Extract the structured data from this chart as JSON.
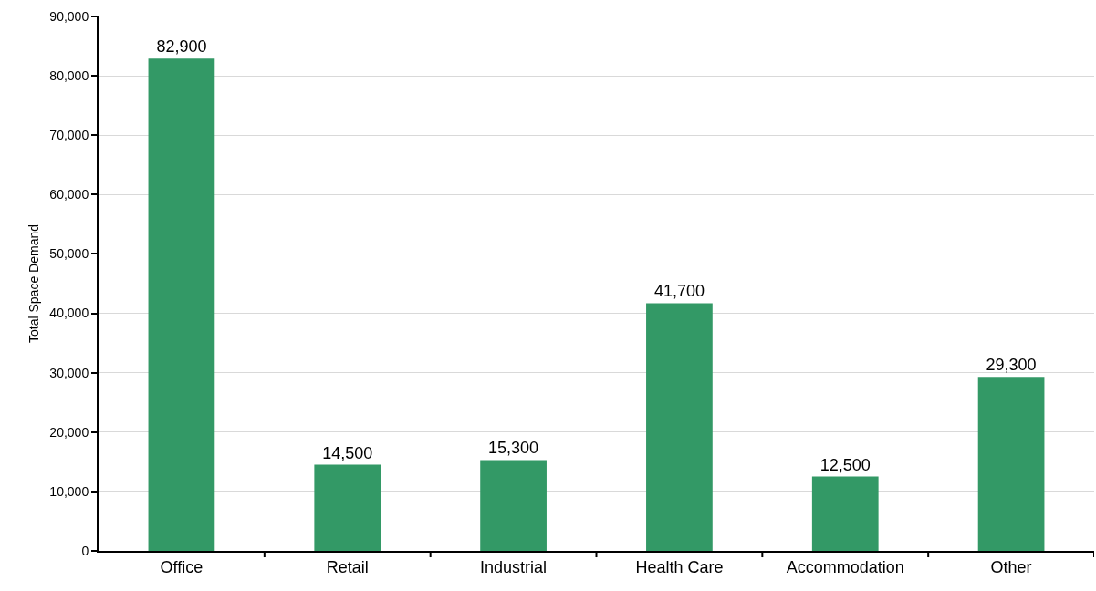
{
  "chart_data": {
    "type": "bar",
    "categories": [
      "Office",
      "Retail",
      "Industrial",
      "Health Care",
      "Accommodation",
      "Other"
    ],
    "values": [
      82900,
      14500,
      15300,
      41700,
      12500,
      29300
    ],
    "color": "#339966",
    "ylabel": "Total Space Demand",
    "ylim": [
      0,
      90000
    ],
    "yticks": [
      {
        "value": 0,
        "label": "0"
      },
      {
        "value": 10000,
        "label": "10,000"
      },
      {
        "value": 20000,
        "label": "20,000"
      },
      {
        "value": 30000,
        "label": "30,000"
      },
      {
        "value": 40000,
        "label": "40,000"
      },
      {
        "value": 50000,
        "label": "50,000"
      },
      {
        "value": 60000,
        "label": "60,000"
      },
      {
        "value": 70000,
        "label": "70,000"
      },
      {
        "value": 80000,
        "label": "80,000"
      },
      {
        "value": 90000,
        "label": "90,000"
      }
    ],
    "value_labels": [
      "82,900",
      "14,500",
      "15,300",
      "41,700",
      "12,500",
      "29,300"
    ],
    "grid": "y",
    "legend": false
  }
}
